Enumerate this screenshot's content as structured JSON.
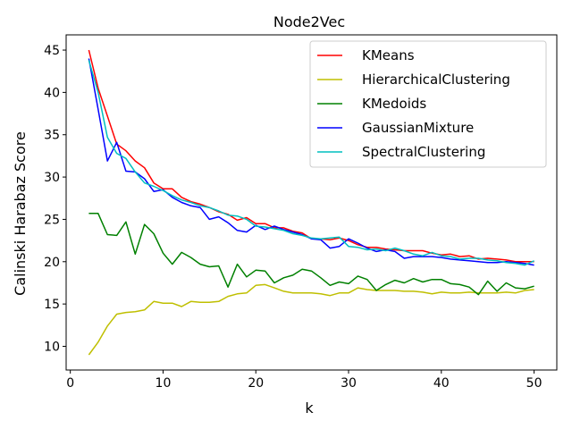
{
  "chart_data": {
    "type": "line",
    "title": "Node2Vec",
    "xlabel": "k",
    "ylabel": "Calinski Harabaz Score",
    "xlim": [
      -0.45,
      52.45
    ],
    "ylim": [
      7.2,
      46.8
    ],
    "xticks": [
      0,
      10,
      20,
      30,
      40,
      50
    ],
    "yticks": [
      10,
      15,
      20,
      25,
      30,
      35,
      40,
      45
    ],
    "grid": false,
    "legend_position": "top-right",
    "x": [
      2,
      3,
      4,
      5,
      6,
      7,
      8,
      9,
      10,
      11,
      12,
      13,
      14,
      15,
      16,
      17,
      18,
      19,
      20,
      21,
      22,
      23,
      24,
      25,
      26,
      27,
      28,
      29,
      30,
      31,
      32,
      33,
      34,
      35,
      36,
      37,
      38,
      39,
      40,
      41,
      42,
      43,
      44,
      45,
      46,
      47,
      48,
      49,
      50
    ],
    "series": [
      {
        "name": "KMeans",
        "color": "#ff0000",
        "values": [
          45.0,
          40.5,
          37.2,
          33.9,
          33.1,
          31.9,
          31.1,
          29.3,
          28.6,
          28.6,
          27.6,
          27.1,
          26.8,
          26.4,
          25.9,
          25.6,
          24.9,
          25.2,
          24.5,
          24.5,
          24.0,
          24.0,
          23.6,
          23.4,
          22.7,
          22.7,
          22.6,
          22.8,
          22.5,
          22.0,
          21.7,
          21.7,
          21.5,
          21.4,
          21.3,
          21.3,
          21.3,
          21.0,
          20.8,
          20.9,
          20.6,
          20.7,
          20.3,
          20.4,
          20.3,
          20.2,
          20.0,
          20.0,
          20.0
        ]
      },
      {
        "name": "HierarchicalClustering",
        "color": "#bfbf00",
        "values": [
          9.0,
          10.5,
          12.4,
          13.8,
          14.0,
          14.1,
          14.3,
          15.3,
          15.1,
          15.1,
          14.7,
          15.3,
          15.2,
          15.2,
          15.3,
          15.9,
          16.2,
          16.3,
          17.2,
          17.3,
          16.9,
          16.5,
          16.3,
          16.3,
          16.3,
          16.2,
          16.0,
          16.3,
          16.3,
          16.9,
          16.7,
          16.6,
          16.6,
          16.6,
          16.5,
          16.5,
          16.4,
          16.2,
          16.4,
          16.3,
          16.3,
          16.4,
          16.3,
          16.3,
          16.3,
          16.4,
          16.3,
          16.6,
          16.7
        ]
      },
      {
        "name": "KMedoids",
        "color": "#008000",
        "values": [
          25.7,
          25.7,
          23.2,
          23.1,
          24.7,
          20.9,
          24.4,
          23.3,
          21.0,
          19.7,
          21.1,
          20.5,
          19.7,
          19.4,
          19.5,
          17.0,
          19.7,
          18.2,
          19.0,
          18.9,
          17.5,
          18.1,
          18.4,
          19.1,
          18.9,
          18.1,
          17.2,
          17.6,
          17.4,
          18.3,
          17.9,
          16.6,
          17.3,
          17.8,
          17.5,
          18.0,
          17.6,
          17.9,
          17.9,
          17.4,
          17.3,
          17.0,
          16.1,
          17.7,
          16.5,
          17.5,
          16.9,
          16.8,
          17.1
        ]
      },
      {
        "name": "GaussianMixture",
        "color": "#0000ff",
        "values": [
          44.0,
          38.0,
          31.9,
          34.1,
          30.7,
          30.6,
          29.8,
          28.3,
          28.5,
          27.6,
          27.0,
          26.6,
          26.4,
          25.0,
          25.3,
          24.6,
          23.7,
          23.5,
          24.3,
          23.8,
          24.2,
          23.8,
          23.5,
          23.2,
          22.7,
          22.6,
          21.6,
          21.8,
          22.7,
          22.2,
          21.6,
          21.2,
          21.4,
          21.2,
          20.4,
          20.6,
          20.6,
          20.6,
          20.5,
          20.3,
          20.2,
          20.1,
          20.0,
          19.9,
          19.9,
          20.0,
          19.9,
          19.8,
          19.6
        ]
      },
      {
        "name": "SpectralClustering",
        "color": "#00bfbf",
        "values": [
          43.8,
          40.0,
          34.7,
          32.8,
          32.2,
          30.6,
          29.3,
          28.9,
          28.4,
          27.8,
          27.3,
          27.0,
          26.6,
          26.4,
          26.0,
          25.5,
          25.4,
          25.0,
          24.2,
          24.1,
          23.9,
          23.7,
          23.3,
          23.1,
          22.8,
          22.7,
          22.8,
          22.9,
          21.8,
          21.7,
          21.4,
          21.5,
          21.3,
          21.6,
          21.3,
          20.9,
          20.7,
          21.1,
          20.7,
          20.6,
          20.3,
          20.4,
          20.4,
          20.2,
          20.1,
          19.9,
          19.8,
          19.6,
          20.1
        ]
      }
    ]
  }
}
